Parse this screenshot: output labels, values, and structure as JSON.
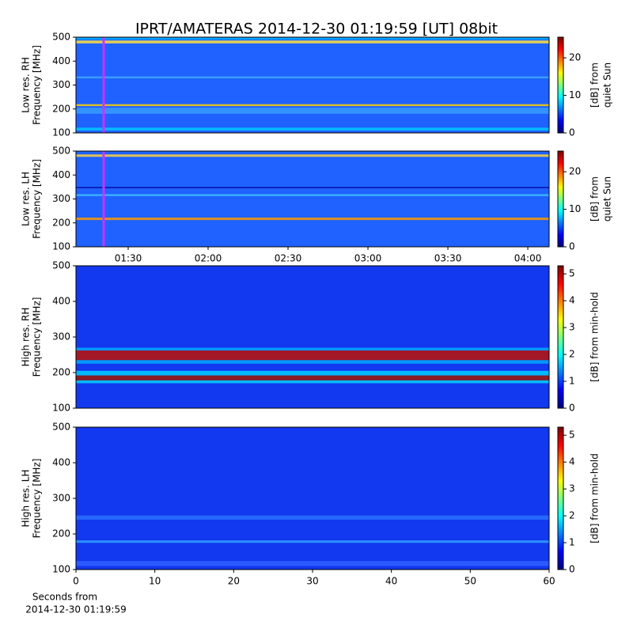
{
  "title": "IPRT/AMATERAS 2014-12-30 01:19:59 [UT]   08bit",
  "x_note": [
    "Seconds from",
    "2014-12-30 01:19:59"
  ],
  "colormap": [
    "#00007f",
    "#0000ff",
    "#007fff",
    "#00ffff",
    "#7fff7f",
    "#ffff00",
    "#ff7f00",
    "#ff0000",
    "#7f0000"
  ],
  "chart_data": [
    {
      "type": "heatmap",
      "ylabel": [
        "Low res. RH",
        "Frequency [MHz]"
      ],
      "ylim": [
        100,
        500
      ],
      "yticks": [
        100,
        200,
        300,
        400,
        500
      ],
      "xlim": [
        70.4,
        248
      ],
      "background": "#1f62ff",
      "marker": {
        "x": 80.8,
        "color": "#cc33ff"
      },
      "bands": [
        {
          "y0": 110,
          "y1": 122,
          "color": "#00c8ff"
        },
        {
          "y0": 212,
          "y1": 220,
          "color": "#ffd000"
        },
        {
          "y0": 180,
          "y1": 205,
          "color": "#3a9cff"
        },
        {
          "y0": 328,
          "y1": 336,
          "color": "#40a8ff"
        },
        {
          "y0": 474,
          "y1": 486,
          "color": "#ffe040"
        },
        {
          "y0": 490,
          "y1": 500,
          "color": "#00b0ff"
        }
      ],
      "colorbar": {
        "label": [
          "[dB] from",
          "quiet Sun"
        ],
        "lim": [
          0,
          25.5
        ],
        "ticks": [
          0,
          10,
          20
        ]
      }
    },
    {
      "type": "heatmap",
      "ylabel": [
        "Low res. LH",
        "Frequency [MHz]"
      ],
      "ylim": [
        100,
        500
      ],
      "yticks": [
        100,
        200,
        300,
        400,
        500
      ],
      "xlim": [
        70.4,
        248
      ],
      "background": "#1f62ff",
      "marker": {
        "x": 80.8,
        "color": "#cc33ff"
      },
      "xticks": [
        {
          "value": 90,
          "label": "01:30"
        },
        {
          "value": 120,
          "label": "02:00"
        },
        {
          "value": 150,
          "label": "02:30"
        },
        {
          "value": 180,
          "label": "03:00"
        },
        {
          "value": 210,
          "label": "03:30"
        },
        {
          "value": 240,
          "label": "04:00"
        }
      ],
      "bands": [
        {
          "y0": 212,
          "y1": 222,
          "color": "#ff9a00"
        },
        {
          "y0": 312,
          "y1": 320,
          "color": "#40c0ff"
        },
        {
          "y0": 345,
          "y1": 350,
          "color": "#000090"
        },
        {
          "y0": 476,
          "y1": 486,
          "color": "#ffd040"
        }
      ],
      "colorbar": {
        "label": [
          "[dB] from",
          "quiet Sun"
        ],
        "lim": [
          0,
          25.5
        ],
        "ticks": [
          0,
          10,
          20
        ]
      }
    },
    {
      "type": "heatmap",
      "ylabel": [
        "High res. RH",
        "Frequency [MHz]"
      ],
      "ylim": [
        100,
        500
      ],
      "yticks": [
        100,
        200,
        300,
        400,
        500
      ],
      "xlim": [
        0,
        60
      ],
      "background": "#1238f0",
      "bands": [
        {
          "y0": 225,
          "y1": 270,
          "color": "#00a8ff"
        },
        {
          "y0": 235,
          "y1": 262,
          "color": "#c00000"
        },
        {
          "y0": 170,
          "y1": 205,
          "color": "#00d0ff"
        },
        {
          "y0": 178,
          "y1": 192,
          "color": "#a00000"
        }
      ],
      "colorbar": {
        "label": [
          "[dB] from min-hold"
        ],
        "lim": [
          0,
          5.3
        ],
        "ticks": [
          0,
          1,
          2,
          3,
          4,
          5
        ]
      }
    },
    {
      "type": "heatmap",
      "ylabel": [
        "High res. LH",
        "Frequency [MHz]"
      ],
      "ylim": [
        100,
        500
      ],
      "yticks": [
        100,
        200,
        300,
        400,
        500
      ],
      "xlim": [
        0,
        60
      ],
      "background": "#1238f0",
      "xticks": [
        0,
        10,
        20,
        30,
        40,
        50,
        60
      ],
      "bands": [
        {
          "y0": 110,
          "y1": 124,
          "color": "#3060ff"
        },
        {
          "y0": 175,
          "y1": 182,
          "color": "#30a0ff"
        },
        {
          "y0": 240,
          "y1": 252,
          "color": "#2a70ff"
        }
      ],
      "colorbar": {
        "label": [
          "[dB] from min-hold"
        ],
        "lim": [
          0,
          5.3
        ],
        "ticks": [
          0,
          1,
          2,
          3,
          4,
          5
        ]
      }
    }
  ]
}
